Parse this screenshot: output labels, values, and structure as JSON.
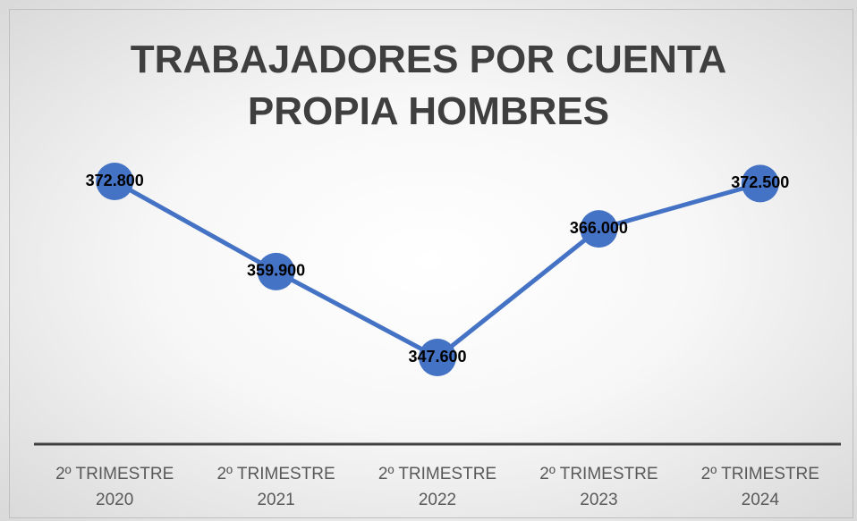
{
  "chart_data": {
    "type": "line",
    "title": "TRABAJADORES POR CUENTA PROPIA HOMBRES",
    "categories": [
      "2º TRIMESTRE 2020",
      "2º TRIMESTRE 2021",
      "2º TRIMESTRE 2022",
      "2º TRIMESTRE 2023",
      "2º TRIMESTRE 2024"
    ],
    "series": [
      {
        "color": "#4472c4",
        "values": [
          372800,
          359900,
          347600,
          366000,
          372500
        ],
        "value_labels": [
          "372.800",
          "359.900",
          "347.600",
          "366.000",
          "372.500"
        ]
      }
    ]
  }
}
